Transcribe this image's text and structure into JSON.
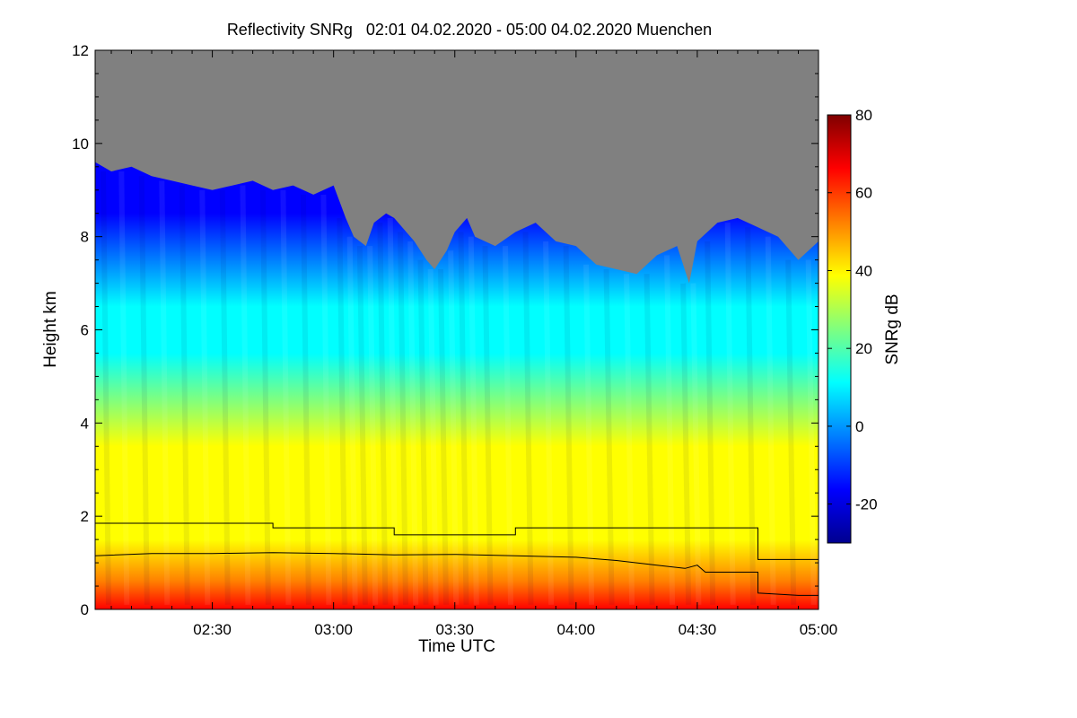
{
  "chart_data": {
    "type": "heatmap",
    "title": "Reflectivity SNRg   02:01 04.02.2020 - 05:00 04.02.2020 Muenchen",
    "xlabel": "Time UTC",
    "ylabel": "Height km",
    "x_range_minutes": [
      121,
      300
    ],
    "xticks": [
      {
        "minute": 150,
        "label": "02:30"
      },
      {
        "minute": 180,
        "label": "03:00"
      },
      {
        "minute": 210,
        "label": "03:30"
      },
      {
        "minute": 240,
        "label": "04:00"
      },
      {
        "minute": 270,
        "label": "04:30"
      },
      {
        "minute": 300,
        "label": "05:00"
      }
    ],
    "ylim": [
      0,
      12
    ],
    "yticks": [
      0,
      2,
      4,
      6,
      8,
      10,
      12
    ],
    "colorbar": {
      "label": "SNRg dB",
      "range": [
        -30,
        80
      ],
      "ticks": [
        -20,
        0,
        20,
        40,
        60,
        80
      ],
      "colormap": [
        "#00008f",
        "#0000ff",
        "#007fff",
        "#00ffff",
        "#7fff7f",
        "#ffff00",
        "#ff7f00",
        "#ff0000",
        "#7f0000"
      ]
    },
    "no_signal_color": "#808080",
    "cloud_top_km": {
      "minute": [
        121,
        125,
        130,
        135,
        140,
        145,
        150,
        155,
        160,
        165,
        170,
        175,
        180,
        183,
        185,
        188,
        190,
        193,
        195,
        198,
        200,
        203,
        205,
        208,
        210,
        213,
        215,
        220,
        225,
        230,
        235,
        240,
        245,
        250,
        255,
        260,
        265,
        268,
        270,
        275,
        280,
        285,
        290,
        295,
        300
      ],
      "height": [
        9.6,
        9.4,
        9.5,
        9.3,
        9.2,
        9.1,
        9.0,
        9.1,
        9.2,
        9.0,
        9.1,
        8.9,
        9.1,
        8.4,
        8.0,
        7.8,
        8.3,
        8.5,
        8.4,
        8.1,
        7.9,
        7.5,
        7.3,
        7.7,
        8.1,
        8.4,
        8.0,
        7.8,
        8.1,
        8.3,
        7.9,
        7.8,
        7.4,
        7.3,
        7.2,
        7.6,
        7.8,
        7.0,
        7.9,
        8.3,
        8.4,
        8.2,
        8.0,
        7.5,
        7.9
      ]
    },
    "series": [
      {
        "name": "upper boundary line",
        "type": "step",
        "minute": [
          121,
          165,
          165,
          195,
          195,
          225,
          225,
          285,
          285,
          300
        ],
        "height": [
          1.85,
          1.85,
          1.75,
          1.75,
          1.6,
          1.6,
          1.75,
          1.75,
          1.07,
          1.07
        ]
      },
      {
        "name": "lower boundary line",
        "type": "line",
        "minute": [
          121,
          135,
          150,
          165,
          180,
          195,
          210,
          225,
          240,
          250,
          260,
          267,
          270,
          272,
          285,
          285,
          295,
          300
        ],
        "height": [
          1.15,
          1.2,
          1.2,
          1.22,
          1.2,
          1.17,
          1.18,
          1.15,
          1.12,
          1.05,
          0.95,
          0.88,
          0.95,
          0.8,
          0.8,
          0.35,
          0.3,
          0.3
        ]
      }
    ]
  }
}
